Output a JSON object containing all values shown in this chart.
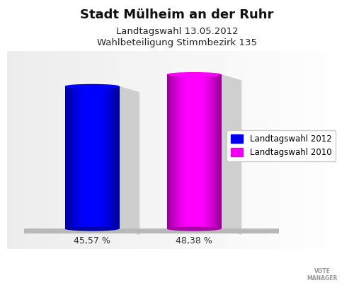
{
  "title": "Stadt Mülheim an der Ruhr",
  "subtitle1": "Landtagswahl 13.05.2012",
  "subtitle2": "Wahlbeteiligung Stimmbezirk 135",
  "values": [
    45.57,
    48.38
  ],
  "bar_colors": [
    "#0000ee",
    "#ee00ee"
  ],
  "bar_labels": [
    "45,57 %",
    "48,38 %"
  ],
  "legend_labels": [
    "Landtagswahl 2012",
    "Landtagswahl 2010"
  ],
  "background_color": "#ffffff",
  "title_fontsize": 13,
  "subtitle_fontsize": 9.5,
  "label_fontsize": 9,
  "legend_fontsize": 8.5
}
